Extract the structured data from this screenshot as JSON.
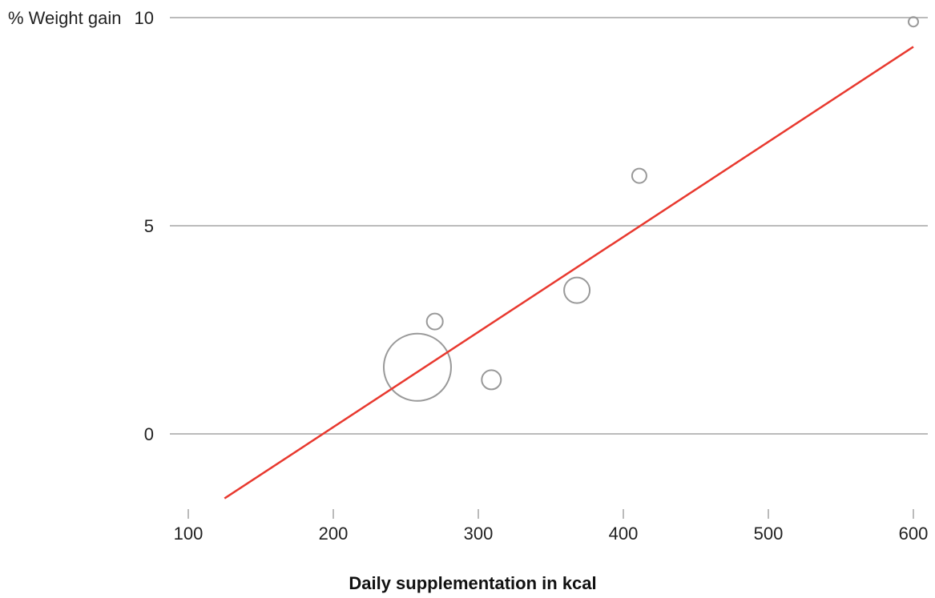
{
  "chart_data": {
    "type": "scatter",
    "title": "",
    "xlabel": "Daily supplementation in kcal",
    "ylabel": "% Weight gain",
    "xlim": [
      100,
      600
    ],
    "ylim": [
      -1.6,
      10
    ],
    "x_ticks": [
      100,
      200,
      300,
      400,
      500,
      600
    ],
    "y_ticks": [
      0,
      5,
      10
    ],
    "grid": "horizontal",
    "points": [
      {
        "x": 258,
        "y": 1.6,
        "size": 42
      },
      {
        "x": 270,
        "y": 2.7,
        "size": 10
      },
      {
        "x": 309,
        "y": 1.3,
        "size": 12
      },
      {
        "x": 368,
        "y": 3.45,
        "size": 16
      },
      {
        "x": 411,
        "y": 6.2,
        "size": 9
      },
      {
        "x": 600,
        "y": 9.9,
        "size": 6
      }
    ],
    "trendline": {
      "x": [
        125,
        600
      ],
      "y": [
        -1.55,
        9.3
      ]
    },
    "colors": {
      "points": "#999999",
      "trendline": "#e8392f",
      "grid": "#bbbbbb",
      "ticks": "#bbbbbb"
    }
  }
}
